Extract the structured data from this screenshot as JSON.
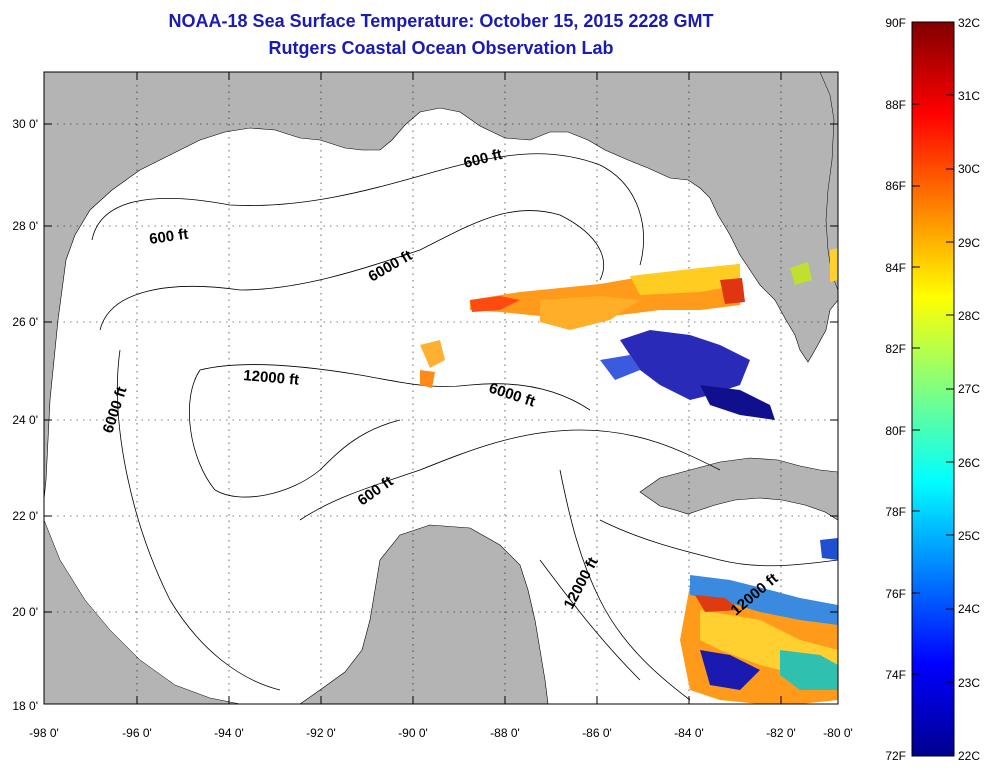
{
  "title": "NOAA-18 Sea Surface Temperature:  October 15, 2015 2228 GMT",
  "subtitle": "Rutgers Coastal Ocean Observation Lab",
  "map": {
    "lon_labels": [
      "-98 0'",
      "-96 0'",
      "-94 0'",
      "-92 0'",
      "-90 0'",
      "-88 0'",
      "-86 0'",
      "-84 0'",
      "-82 0'",
      "-80 0'"
    ],
    "lat_labels": [
      "30 0'",
      "28 0'",
      "26 0'",
      "24 0'",
      "22 0'",
      "20 0'",
      "18 0'"
    ],
    "contour_labels": [
      "600 ft",
      "600 ft",
      "6000 ft",
      "6000 ft",
      "12000 ft",
      "6000 ft",
      "600 ft",
      "12000 ft",
      "12000 ft"
    ]
  },
  "colorbar": {
    "f_labels": [
      "90F",
      "88F",
      "86F",
      "84F",
      "82F",
      "80F",
      "78F",
      "76F",
      "74F",
      "72F"
    ],
    "c_labels": [
      "32C",
      "31C",
      "30C",
      "29C",
      "28C",
      "27C",
      "26C",
      "25C",
      "24C",
      "23C",
      "22C"
    ]
  },
  "colors": {
    "title": "#1a1ab4",
    "land": "#b4b4b4",
    "ocean": "#ffffff"
  }
}
